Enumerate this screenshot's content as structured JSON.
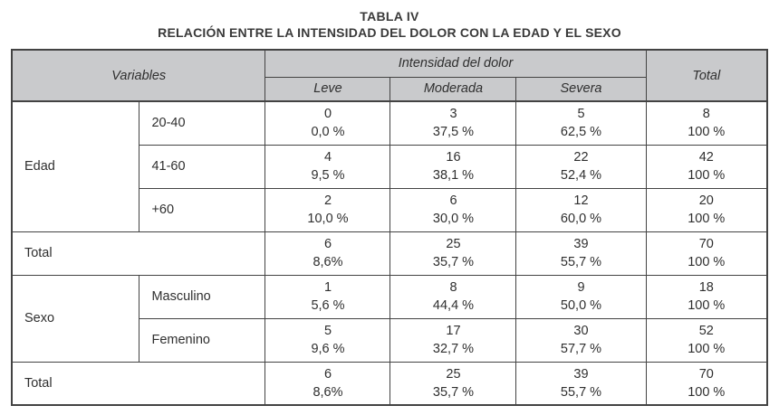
{
  "page": {
    "title": "TABLA IV",
    "subtitle": "RELACIÓN ENTRE LA INTENSIDAD DEL DOLOR CON LA EDAD Y EL SEXO"
  },
  "colors": {
    "header_bg": "#c9cacc",
    "border": "#434343",
    "text": "#2f2f2f"
  },
  "table": {
    "header": {
      "variables": "Variables",
      "intensity": "Intensidad del dolor",
      "leve": "Leve",
      "moderada": "Moderada",
      "severa": "Severa",
      "total": "Total"
    },
    "groups": {
      "edad": "Edad",
      "sexo": "Sexo"
    },
    "rows": [
      {
        "label": "20-40",
        "cells": [
          {
            "n": "0",
            "p": "0,0 %"
          },
          {
            "n": "3",
            "p": "37,5 %"
          },
          {
            "n": "5",
            "p": "62,5 %"
          },
          {
            "n": "8",
            "p": "100 %"
          }
        ]
      },
      {
        "label": "41-60",
        "cells": [
          {
            "n": "4",
            "p": "9,5 %"
          },
          {
            "n": "16",
            "p": "38,1 %"
          },
          {
            "n": "22",
            "p": "52,4 %"
          },
          {
            "n": "42",
            "p": "100 %"
          }
        ]
      },
      {
        "label": "+60",
        "cells": [
          {
            "n": "2",
            "p": "10,0 %"
          },
          {
            "n": "6",
            "p": "30,0 %"
          },
          {
            "n": "12",
            "p": "60,0 %"
          },
          {
            "n": "20",
            "p": "100 %"
          }
        ]
      },
      {
        "label": "Total",
        "cells": [
          {
            "n": "6",
            "p": "8,6%"
          },
          {
            "n": "25",
            "p": "35,7 %"
          },
          {
            "n": "39",
            "p": "55,7 %"
          },
          {
            "n": "70",
            "p": "100 %"
          }
        ]
      },
      {
        "label": "Masculino",
        "cells": [
          {
            "n": "1",
            "p": "5,6 %"
          },
          {
            "n": "8",
            "p": "44,4 %"
          },
          {
            "n": "9",
            "p": "50,0 %"
          },
          {
            "n": "18",
            "p": "100 %"
          }
        ]
      },
      {
        "label": "Femenino",
        "cells": [
          {
            "n": "5",
            "p": "9,6 %"
          },
          {
            "n": "17",
            "p": "32,7 %"
          },
          {
            "n": "30",
            "p": "57,7 %"
          },
          {
            "n": "52",
            "p": "100 %"
          }
        ]
      },
      {
        "label": "Total",
        "cells": [
          {
            "n": "6",
            "p": "8,6%"
          },
          {
            "n": "25",
            "p": "35,7 %"
          },
          {
            "n": "39",
            "p": "55,7 %"
          },
          {
            "n": "70",
            "p": "100 %"
          }
        ]
      }
    ]
  }
}
